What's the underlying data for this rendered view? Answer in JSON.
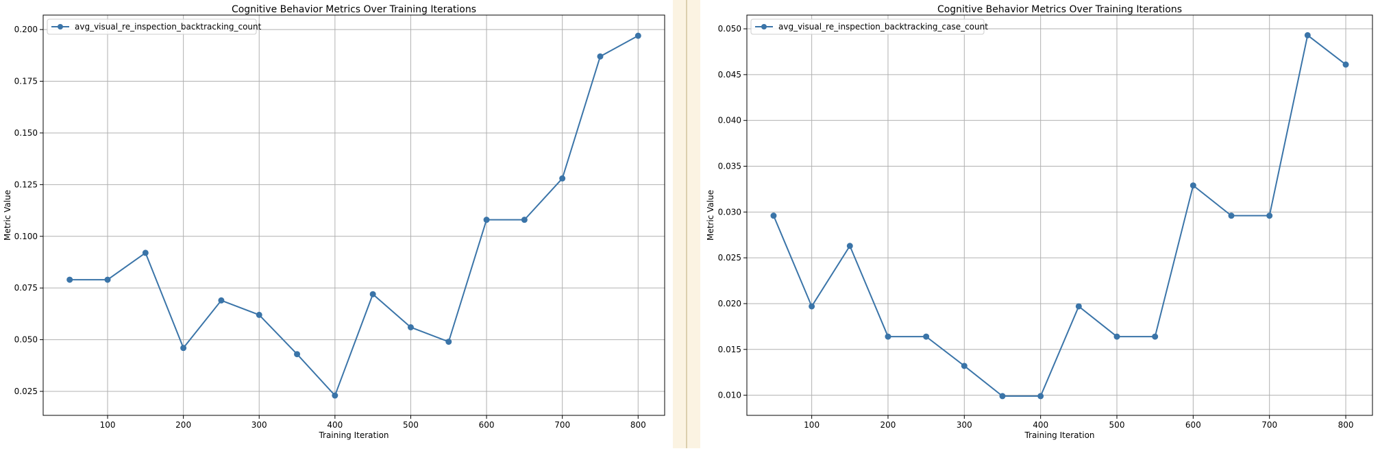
{
  "chart_data": [
    {
      "type": "line",
      "title": "Cognitive Behavior Metrics Over Training Iterations",
      "xlabel": "Training Iteration",
      "ylabel": "Metric Value",
      "xlim": [
        15,
        835
      ],
      "ylim": [
        0.0134,
        0.207
      ],
      "xticks": [
        100,
        200,
        300,
        400,
        500,
        600,
        700,
        800
      ],
      "yticks": [
        0.025,
        0.05,
        0.075,
        0.1,
        0.125,
        0.15,
        0.175,
        0.2
      ],
      "ytick_labels": [
        "0.025",
        "0.050",
        "0.075",
        "0.100",
        "0.125",
        "0.150",
        "0.175",
        "0.200"
      ],
      "grid": true,
      "legend_position": "top-left",
      "color": "#3a74a8",
      "x": [
        50,
        100,
        150,
        200,
        250,
        300,
        350,
        400,
        450,
        500,
        550,
        600,
        650,
        700,
        750,
        800
      ],
      "series": [
        {
          "name": "avg_visual_re_inspection_backtracking_count",
          "values": [
            0.079,
            0.079,
            0.092,
            0.046,
            0.069,
            0.062,
            0.043,
            0.023,
            0.072,
            0.056,
            0.049,
            0.108,
            0.108,
            0.128,
            0.187,
            0.197
          ]
        }
      ]
    },
    {
      "type": "line",
      "title": "Cognitive Behavior Metrics Over Training Iterations",
      "xlabel": "Training Iteration",
      "ylabel": "Metric Value",
      "xlim": [
        15,
        835
      ],
      "ylim": [
        0.0078,
        0.0515
      ],
      "xticks": [
        100,
        200,
        300,
        400,
        500,
        600,
        700,
        800
      ],
      "yticks": [
        0.01,
        0.015,
        0.02,
        0.025,
        0.03,
        0.035,
        0.04,
        0.045,
        0.05
      ],
      "ytick_labels": [
        "0.010",
        "0.015",
        "0.020",
        "0.025",
        "0.030",
        "0.035",
        "0.040",
        "0.045",
        "0.050"
      ],
      "grid": true,
      "legend_position": "top-left",
      "color": "#3a74a8",
      "x": [
        50,
        100,
        150,
        200,
        250,
        300,
        350,
        400,
        450,
        500,
        550,
        600,
        650,
        700,
        750,
        800
      ],
      "series": [
        {
          "name": "avg_visual_re_inspection_backtracking_case_count",
          "values": [
            0.0296,
            0.0197,
            0.0263,
            0.0164,
            0.0164,
            0.0132,
            0.0099,
            0.0099,
            0.0197,
            0.0164,
            0.0164,
            0.0329,
            0.0296,
            0.0296,
            0.0493,
            0.0461
          ]
        }
      ]
    }
  ]
}
